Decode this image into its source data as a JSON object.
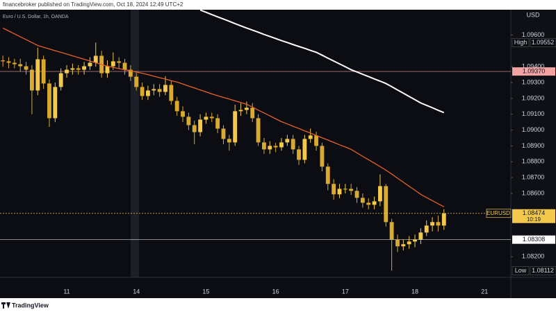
{
  "header": {
    "published": "financebroker published on TradingView.com, Oct 18, 2024 12:49 UTC+2",
    "footer": "TradingView"
  },
  "chart_data": {
    "type": "candlestick",
    "legend_title": "Euro / U.S. Dollar, 1h, OANDA",
    "currency": "USD",
    "categories": [
      null,
      null,
      null,
      null,
      null,
      null,
      null,
      null,
      null,
      null,
      null,
      "11",
      null,
      null,
      null,
      null,
      null,
      null,
      null,
      null,
      null,
      null,
      null,
      "14",
      null,
      null,
      null,
      null,
      null,
      null,
      null,
      null,
      null,
      null,
      null,
      "15",
      null,
      null,
      null,
      null,
      null,
      null,
      null,
      null,
      null,
      null,
      null,
      "16",
      null,
      null,
      null,
      null,
      null,
      null,
      null,
      null,
      null,
      null,
      null,
      "17",
      null,
      null,
      null,
      null,
      null,
      null,
      null,
      null,
      null,
      null,
      null,
      "18",
      null,
      null,
      null,
      null,
      null,
      null,
      null,
      null,
      null,
      null,
      null,
      "21"
    ],
    "candles": {
      "up_color": "#f2c94c",
      "down_color": "#d9a930",
      "open": [
        1.0944,
        1.09434,
        1.09425,
        1.09416,
        1.09403,
        1.09381,
        1.0925,
        1.09447,
        1.09294,
        1.09075,
        1.09272,
        1.09359,
        1.09381,
        1.0939,
        1.09381,
        1.09403,
        1.09425,
        1.09469,
        1.09359,
        1.09403,
        1.09434,
        1.09425,
        1.09381,
        1.09337,
        1.09272,
        1.09215,
        1.0925,
        1.09259,
        1.09241,
        1.09285,
        1.09184,
        1.09119,
        1.09084,
        1.09031,
        1.08987,
        1.09066,
        1.09084,
        1.09075,
        1.09009,
        1.08944,
        1.08922,
        1.09119,
        1.09127,
        1.09141,
        1.09075,
        1.08922,
        1.08878,
        1.089,
        1.08891,
        1.08922,
        1.08944,
        1.08878,
        1.08812,
        1.08944,
        1.08966,
        1.089,
        1.08769,
        1.0866,
        1.08594,
        1.08629,
        1.08629,
        1.08616,
        1.08572,
        1.08541,
        1.08528,
        1.0855,
        1.08646,
        1.08419,
        1.08309,
        1.08266,
        1.08279,
        1.08296,
        1.08309,
        1.08353,
        1.08397,
        1.08419,
        1.08397,
        null,
        null,
        null,
        null,
        null,
        null,
        null
      ],
      "high": [
        1.0947,
        1.0946,
        1.0945,
        1.0945,
        1.0943,
        1.0941,
        1.0952,
        1.0947,
        1.0932,
        1.093,
        1.0939,
        1.0941,
        1.0942,
        1.0941,
        1.0943,
        1.0946,
        1.09552,
        1.095,
        1.0944,
        1.0949,
        1.0946,
        1.0945,
        1.0941,
        1.0936,
        1.093,
        1.0928,
        1.0929,
        1.0929,
        1.0934,
        1.0931,
        1.0921,
        1.0915,
        1.0911,
        1.0906,
        1.091,
        1.0911,
        1.0911,
        1.091,
        1.0903,
        1.0897,
        1.0916,
        1.0917,
        1.0918,
        1.0917,
        1.091,
        1.0895,
        1.0893,
        1.0892,
        1.0895,
        1.0897,
        1.0897,
        1.089,
        1.0897,
        1.0901,
        1.0899,
        1.0892,
        1.0879,
        1.0869,
        1.0866,
        1.0866,
        1.0866,
        1.0864,
        1.086,
        1.0857,
        1.0858,
        1.0872,
        1.0866,
        1.0844,
        1.0834,
        1.0831,
        1.0833,
        1.0834,
        1.0838,
        1.0843,
        1.0845,
        1.0846,
        1.085,
        null,
        null,
        null,
        null,
        null,
        null,
        null
      ],
      "low": [
        1.094,
        1.0939,
        1.0939,
        1.0937,
        1.0935,
        1.091,
        1.0922,
        1.0926,
        1.0902,
        1.0905,
        1.0925,
        1.0933,
        1.0935,
        1.0935,
        1.0935,
        1.0938,
        1.094,
        1.0933,
        1.0933,
        1.0938,
        1.0939,
        1.0935,
        1.0931,
        1.0925,
        1.0919,
        1.0919,
        1.0922,
        1.0921,
        1.0922,
        1.0916,
        1.0909,
        1.0905,
        1.09,
        1.0891,
        1.0896,
        1.0904,
        1.0905,
        1.0898,
        1.0891,
        1.0887,
        1.089,
        1.0909,
        1.091,
        1.0905,
        1.089,
        1.0885,
        1.0885,
        1.0886,
        1.0887,
        1.089,
        1.0885,
        1.0878,
        1.0879,
        1.0892,
        1.0887,
        1.0874,
        1.0862,
        1.0856,
        1.0857,
        1.086,
        1.0859,
        1.0854,
        1.0851,
        1.085,
        1.085,
        1.0852,
        1.0839,
        1.08112,
        1.0823,
        1.0824,
        1.0825,
        1.0826,
        1.0828,
        1.0833,
        1.0836,
        1.0836,
        1.0837,
        null,
        null,
        null,
        null,
        null,
        null,
        null
      ],
      "close": [
        1.09434,
        1.09425,
        1.09416,
        1.09403,
        1.09381,
        1.0925,
        1.09447,
        1.09294,
        1.09075,
        1.09272,
        1.09359,
        1.09381,
        1.0939,
        1.09381,
        1.09403,
        1.09425,
        1.09469,
        1.09359,
        1.09403,
        1.09434,
        1.09425,
        1.09381,
        1.09337,
        1.09272,
        1.09215,
        1.0925,
        1.09259,
        1.09241,
        1.09285,
        1.09184,
        1.09119,
        1.09084,
        1.09031,
        1.08987,
        1.09066,
        1.09084,
        1.09075,
        1.09009,
        1.08944,
        1.08922,
        1.09119,
        1.09127,
        1.09141,
        1.09075,
        1.08922,
        1.08878,
        1.089,
        1.08891,
        1.08922,
        1.08944,
        1.08878,
        1.08812,
        1.08944,
        1.08966,
        1.089,
        1.08769,
        1.0866,
        1.08594,
        1.08629,
        1.08629,
        1.08616,
        1.08572,
        1.08541,
        1.08528,
        1.0855,
        1.08646,
        1.08419,
        1.08309,
        1.08266,
        1.08279,
        1.08296,
        1.08309,
        1.08353,
        1.08397,
        1.08419,
        1.08397,
        1.08474,
        null,
        null,
        null,
        null,
        null,
        null,
        null
      ]
    },
    "series": [
      {
        "color": "#e8622a",
        "values": [
          1.09644,
          1.09626,
          1.09607,
          1.09589,
          1.09571,
          1.09553,
          1.09534,
          1.09523,
          1.09512,
          1.09501,
          1.09491,
          1.0948,
          1.09469,
          1.09458,
          1.09447,
          1.09436,
          1.09425,
          1.09414,
          1.09403,
          1.09396,
          1.09388,
          1.09381,
          1.09374,
          1.09366,
          1.09359,
          1.0935,
          1.0934,
          1.09331,
          1.09322,
          1.09312,
          1.09303,
          1.09291,
          1.09278,
          1.09266,
          1.09253,
          1.09241,
          1.09228,
          1.09217,
          1.09206,
          1.09196,
          1.09185,
          1.09174,
          1.09163,
          1.09145,
          1.09126,
          1.09108,
          1.0909,
          1.09071,
          1.09053,
          1.09039,
          1.09024,
          1.0901,
          1.08995,
          1.08981,
          1.08966,
          1.08951,
          1.08937,
          1.08922,
          1.08907,
          1.08893,
          1.08878,
          1.08856,
          1.08834,
          1.08813,
          1.08791,
          1.08769,
          1.08747,
          1.08722,
          1.08696,
          1.08671,
          1.08645,
          1.0862,
          1.08594,
          1.08574,
          1.08554,
          1.08535,
          1.08515,
          null,
          null,
          null,
          null,
          null,
          null,
          null
        ]
      },
      {
        "color": "#ffffff",
        "values": [
          null,
          null,
          null,
          null,
          null,
          null,
          null,
          null,
          null,
          null,
          null,
          null,
          null,
          null,
          null,
          null,
          null,
          null,
          null,
          null,
          null,
          null,
          null,
          null,
          null,
          null,
          null,
          null,
          null,
          null,
          null,
          null,
          null,
          null,
          1.09758,
          1.09744,
          1.09729,
          1.09715,
          1.09701,
          1.09687,
          1.09672,
          1.09658,
          1.09644,
          1.09631,
          1.09618,
          1.09604,
          1.09591,
          1.09578,
          1.09565,
          1.09553,
          1.0954,
          1.09528,
          1.09516,
          1.09503,
          1.09491,
          1.09473,
          1.09454,
          1.09436,
          1.09418,
          1.094,
          1.09381,
          1.09367,
          1.09352,
          1.09338,
          1.09323,
          1.09309,
          1.09294,
          1.09274,
          1.09253,
          1.09233,
          1.09212,
          1.09192,
          1.09171,
          1.09156,
          1.09141,
          1.09125,
          1.0911,
          null,
          null,
          null,
          null,
          null,
          null,
          null
        ]
      }
    ],
    "ylim": [
      1.0807,
      1.0976
    ],
    "yticks": [
      {
        "value": 1.096,
        "label": "1.09600"
      },
      {
        "value": 1.094,
        "label": "1.09400"
      },
      {
        "value": 1.093,
        "label": "1.09300"
      },
      {
        "value": 1.092,
        "label": "1.09200"
      },
      {
        "value": 1.091,
        "label": "1.09100"
      },
      {
        "value": 1.09,
        "label": "1.09000"
      },
      {
        "value": 1.089,
        "label": "1.08900"
      },
      {
        "value": 1.088,
        "label": "1.08800"
      },
      {
        "value": 1.087,
        "label": "1.08700"
      },
      {
        "value": 1.086,
        "label": "1.08600"
      },
      {
        "value": 1.082,
        "label": "1.08200"
      }
    ],
    "grid": false,
    "high": {
      "label": "High",
      "value": 1.09552
    },
    "low": {
      "label": "Low",
      "value": 1.08112
    },
    "last": {
      "symbol": "EURUSD",
      "value": 1.08474,
      "countdown": "10:19",
      "color": "#f2c94c"
    },
    "levels": [
      {
        "value": {
          "value": 1.0937,
          "label": "1.09370"
        },
        "color": "#f4a3a3"
      },
      {
        "value": 1.08308,
        "color": "#ffffff"
      }
    ]
  }
}
